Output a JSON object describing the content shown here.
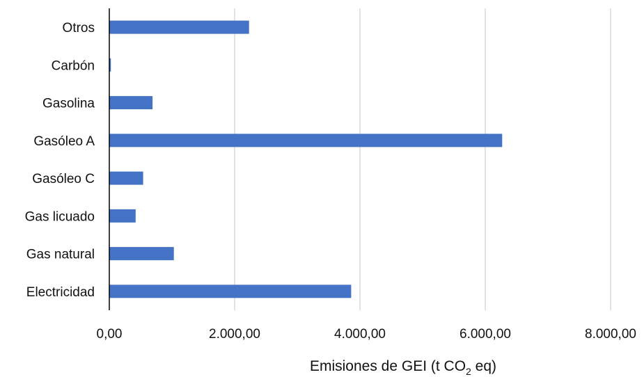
{
  "chart_data": {
    "type": "bar",
    "orientation": "horizontal",
    "title": "",
    "categories": [
      "Otros",
      "Carbón",
      "Gasolina",
      "Gasóleo A",
      "Gasóleo C",
      "Gas licuado",
      "Gas natural",
      "Electricidad"
    ],
    "values": [
      2230,
      25,
      690,
      6270,
      540,
      420,
      1030,
      3860
    ],
    "xlabel": {
      "pre": "Emisiones de GEI (t CO",
      "sub": "2",
      "post": " eq)"
    },
    "ylabel": "",
    "xlim": [
      0,
      8000
    ],
    "x_ticks": [
      0,
      2000,
      4000,
      6000,
      8000
    ],
    "x_tick_labels": [
      "0,00",
      "2.000,00",
      "4.000,00",
      "6.000,00",
      "8.000,00"
    ],
    "grid": {
      "vertical": true,
      "horizontal": false
    },
    "legend": "none",
    "colors": {
      "bar": "#4472C4",
      "grid": "#D9D9D9",
      "axis": "#000000"
    }
  }
}
